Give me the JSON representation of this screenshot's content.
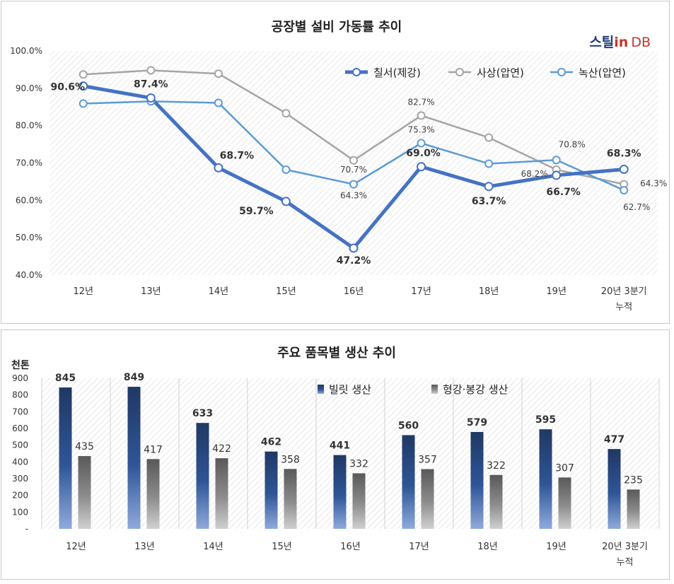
{
  "brand": {
    "text_main": "스틸",
    "text_in": "in",
    "text_db": "DB",
    "color_main": "#1f3c78",
    "color_in": "#c0392b",
    "color_db": "#c0392b"
  },
  "chart_data": [
    {
      "type": "line",
      "title": "공장별 설비 가동률 추이",
      "categories": [
        "12년",
        "13년",
        "14년",
        "15년",
        "16년",
        "17년",
        "18년",
        "19년",
        "20년 3분기 누적"
      ],
      "yticks": [
        "100.0%",
        "90.0%",
        "80.0%",
        "70.0%",
        "60.0%",
        "50.0%",
        "40.0%"
      ],
      "ylim": [
        40,
        100
      ],
      "grid": "hatched plot area",
      "legend_position": "top-right",
      "series": [
        {
          "name": "칠서(제강)",
          "color": "#4472c4",
          "bold": true,
          "values": [
            90.6,
            87.4,
            68.7,
            59.7,
            47.2,
            69.0,
            63.7,
            66.7,
            68.3
          ],
          "labels": [
            "90.6%",
            "87.4%",
            "68.7%",
            "59.7%",
            "47.2%",
            "69.0%",
            "63.7%",
            "66.7%",
            "68.3%"
          ]
        },
        {
          "name": "사상(압연)",
          "color": "#a5a5a5",
          "bold": false,
          "values": [
            93.7,
            94.8,
            93.9,
            83.3,
            70.7,
            82.7,
            76.8,
            68.2,
            64.3
          ],
          "labels": [
            "",
            "",
            "",
            "",
            "70.7%",
            "82.7%",
            "",
            "68.2%",
            "64.3%"
          ]
        },
        {
          "name": "녹산(압연)",
          "color": "#5b9bd5",
          "bold": false,
          "values": [
            85.9,
            86.5,
            86.1,
            68.2,
            64.3,
            75.3,
            69.8,
            70.8,
            62.7
          ],
          "labels": [
            "",
            "",
            "",
            "",
            "64.3%",
            "75.3%",
            "",
            "70.8%",
            "62.7%"
          ]
        }
      ]
    },
    {
      "type": "bar",
      "title": "주요 품목별 생산 추이",
      "unit": "천톤",
      "categories": [
        "12년",
        "13년",
        "14년",
        "15년",
        "16년",
        "17년",
        "18년",
        "19년",
        "20년 3분기 누적"
      ],
      "yticks": [
        "900",
        "800",
        "700",
        "600",
        "500",
        "400",
        "300",
        "200",
        "100",
        "-"
      ],
      "ylim": [
        0,
        900
      ],
      "grid": "hatched plot area",
      "legend_position": "top-right",
      "series": [
        {
          "name": "빌릿 생산",
          "color": "#2f5597",
          "values": [
            845,
            849,
            633,
            462,
            441,
            560,
            579,
            595,
            477
          ]
        },
        {
          "name": "형강·봉강 생산",
          "color": "#7f7f7f",
          "values": [
            435,
            417,
            422,
            358,
            332,
            357,
            322,
            307,
            235
          ]
        }
      ]
    }
  ]
}
